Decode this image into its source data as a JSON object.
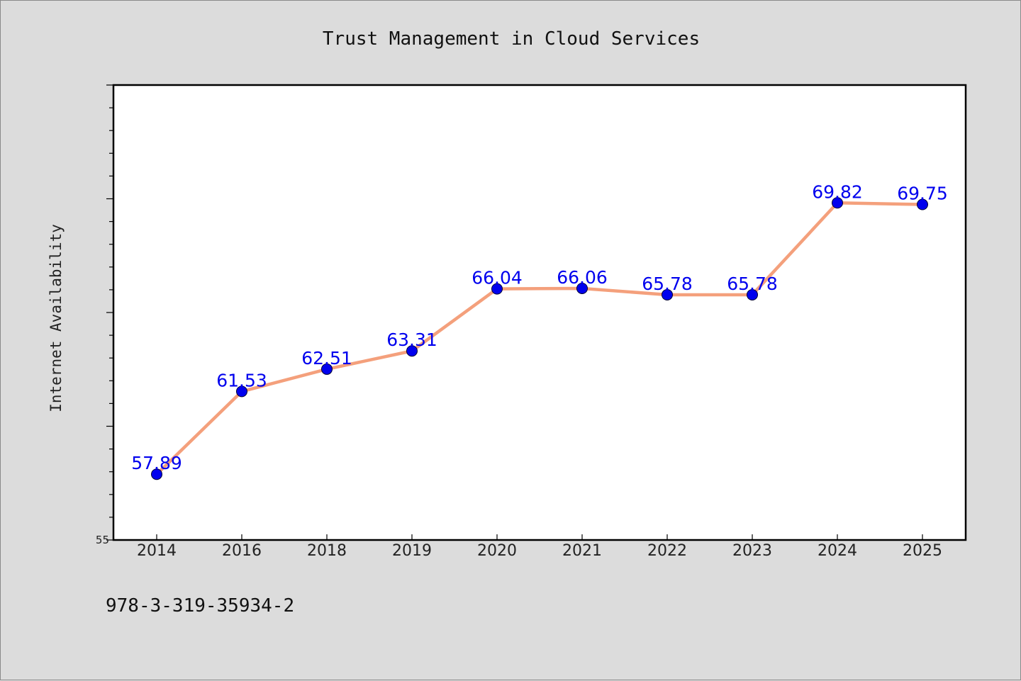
{
  "chart_data": {
    "type": "line",
    "title": "Trust Management in Cloud Services",
    "xlabel": "",
    "ylabel": "Internet Availability",
    "categories": [
      "2014",
      "2016",
      "2018",
      "2019",
      "2020",
      "2021",
      "2022",
      "2023",
      "2024",
      "2025"
    ],
    "series": [
      {
        "values": [
          57.89,
          61.53,
          62.51,
          63.31,
          66.04,
          66.06,
          65.78,
          65.78,
          69.82,
          69.75
        ]
      }
    ],
    "data_labels": [
      "57.89",
      "61.53",
      "62.51",
      "63.31",
      "66.04",
      "66.06",
      "65.78",
      "65.78",
      "69.82",
      "69.75"
    ],
    "ylim": [
      55,
      75
    ],
    "ytick_labels": [
      "55"
    ],
    "grid": false,
    "legend": "none",
    "colors": {
      "line": "#f4a07c",
      "marker": "#0000ee",
      "data_label": "#0000ee",
      "background": "#dcdcdc",
      "plot_background": "#ffffff"
    }
  },
  "footer": {
    "isbn": "978-3-319-35934-2"
  }
}
